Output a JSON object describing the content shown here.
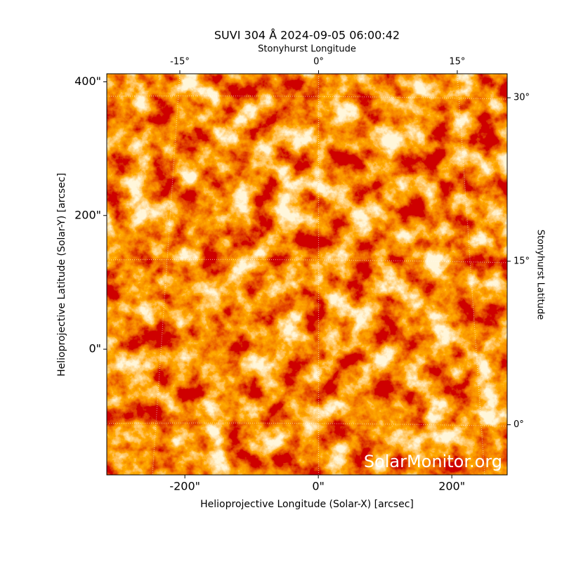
{
  "chart_data": {
    "type": "image",
    "title": "SUVI 304 Å 2024-09-05 06:00:42",
    "xlabel": "Helioprojective Longitude (Solar-X) [arcsec]",
    "ylabel": "Helioprojective Latitude (Solar-Y) [arcsec]",
    "x2label": "Stonyhurst Longitude",
    "y2label": "Stonyhurst Latitude",
    "annotation": "SolarMonitor.org",
    "xlim": [
      -317,
      283
    ],
    "ylim": [
      -188,
      412
    ],
    "xticks": [
      {
        "value": -200,
        "label": "-200\""
      },
      {
        "value": 0,
        "label": "0\""
      },
      {
        "value": 200,
        "label": "200\""
      }
    ],
    "yticks": [
      {
        "value": 0,
        "label": "0\""
      },
      {
        "value": 200,
        "label": "200\""
      },
      {
        "value": 400,
        "label": "400\""
      }
    ],
    "x2lim": [
      -22.9,
      20.4
    ],
    "x2ticks": [
      {
        "value": -15,
        "label": "-15°"
      },
      {
        "value": 0,
        "label": "0°"
      },
      {
        "value": 15,
        "label": "15°"
      }
    ],
    "y2lim": [
      -4.6,
      32.2
    ],
    "y2ticks": [
      {
        "value": 0,
        "label": "0°"
      },
      {
        "value": 15,
        "label": "15°"
      },
      {
        "value": 30,
        "label": "30°"
      }
    ],
    "grid": true
  }
}
